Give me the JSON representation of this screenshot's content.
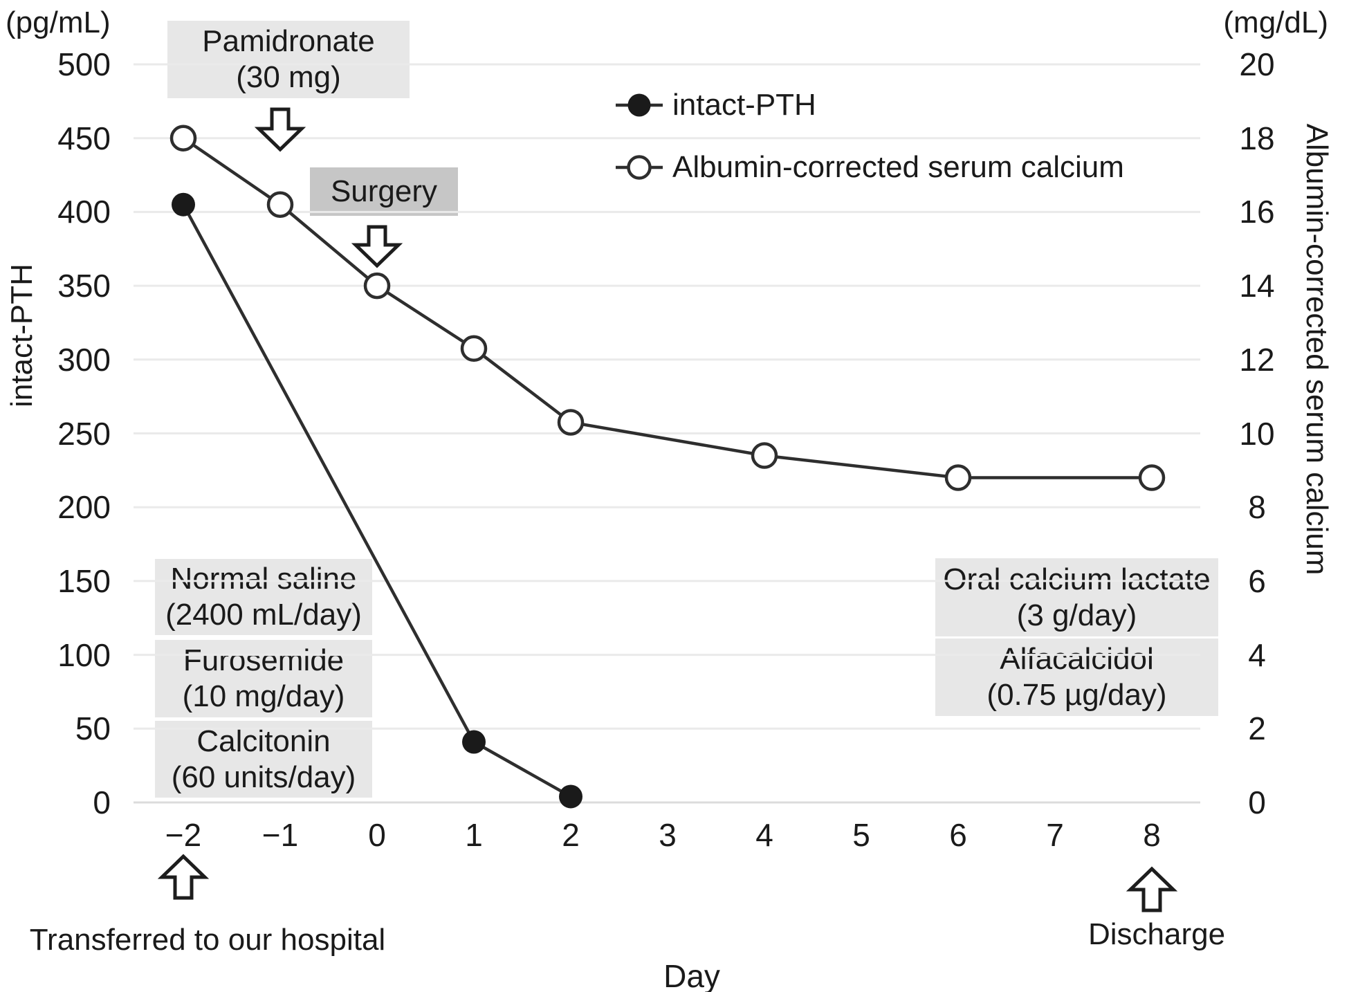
{
  "colors": {
    "background": "#ffffff",
    "gridline": "#eaeaea",
    "gridline_zero": "#dcdcdc",
    "line": "#2e2e2e",
    "box_light": "#e7e7e7",
    "box_dark": "#c6c6c6",
    "text": "#1a1a1a"
  },
  "chart_data": {
    "type": "line",
    "title": "",
    "xlabel": "Day",
    "grid": "horizontal",
    "legend_position": "upper center",
    "x_ticks": [
      -2,
      -1,
      0,
      1,
      2,
      3,
      4,
      5,
      6,
      7,
      8
    ],
    "x_range": [
      -2,
      8
    ],
    "left_axis": {
      "unit": "(pg/mL)",
      "label": "intact-PTH",
      "ticks": [
        0,
        50,
        100,
        150,
        200,
        250,
        300,
        350,
        400,
        450,
        500
      ],
      "range": [
        0,
        500
      ]
    },
    "right_axis": {
      "unit": "(mg/dL)",
      "label": "Albumin-corrected serum calcium",
      "ticks": [
        0,
        2,
        4,
        6,
        8,
        10,
        12,
        14,
        16,
        18,
        20
      ],
      "range": [
        0,
        20
      ]
    },
    "series": [
      {
        "name": "intact-PTH",
        "axis": "left",
        "marker": "filled-circle",
        "color": "#2e2e2e",
        "points": [
          {
            "x": -2,
            "y": 405
          },
          {
            "x": 1,
            "y": 41
          },
          {
            "x": 2,
            "y": 4
          }
        ]
      },
      {
        "name": "Albumin-corrected serum calcium",
        "axis": "right",
        "marker": "open-circle",
        "color": "#2e2e2e",
        "points": [
          {
            "x": -2,
            "y": 18.0
          },
          {
            "x": -1,
            "y": 16.2
          },
          {
            "x": 0,
            "y": 14.0
          },
          {
            "x": 1,
            "y": 12.3
          },
          {
            "x": 2,
            "y": 10.3
          },
          {
            "x": 4,
            "y": 9.4
          },
          {
            "x": 6,
            "y": 8.8
          },
          {
            "x": 8,
            "y": 8.8
          }
        ]
      }
    ],
    "annotations": {
      "pamidronate": {
        "line1": "Pamidronate",
        "line2": "(30 mg)",
        "day": -1
      },
      "surgery": {
        "label": "Surgery",
        "day": 0
      },
      "normal_saline": {
        "line1": "Normal saline",
        "line2": "(2400 mL/day)"
      },
      "furosemide": {
        "line1": "Furosemide",
        "line2": "(10 mg/day)"
      },
      "calcitonin": {
        "line1": "Calcitonin",
        "line2": "(60 units/day)"
      },
      "oral_calcium": {
        "line1": "Oral calcium lactate",
        "line2": "(3 g/day)"
      },
      "alfacalcidol": {
        "line1": "Alfacalcidol",
        "line2": "(0.75 µg/day)"
      },
      "transferred": {
        "label": "Transferred to our hospital",
        "day": -2
      },
      "discharge": {
        "label": "Discharge",
        "day": 8
      }
    }
  }
}
